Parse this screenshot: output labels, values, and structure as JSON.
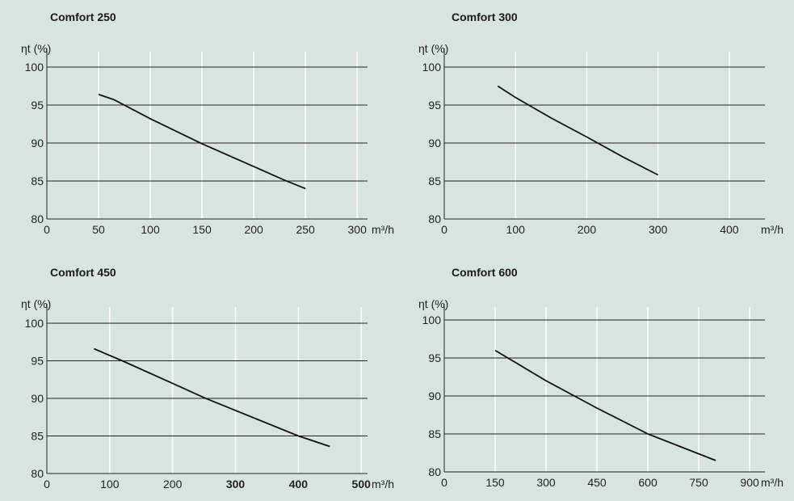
{
  "chart_data": [
    {
      "type": "line",
      "title": "Comfort 250",
      "ylabel": "ηt (%)",
      "xlabel": "m³/h",
      "ylim": [
        80,
        100
      ],
      "xlim": [
        0,
        310
      ],
      "xticks": [
        0,
        50,
        100,
        150,
        200,
        250,
        300
      ],
      "xtick_labels": [
        "0",
        "50",
        "100",
        "150",
        "200",
        "250",
        "300"
      ],
      "xtick_bold": [
        false,
        false,
        false,
        false,
        false,
        false,
        false
      ],
      "yticks": [
        80,
        85,
        90,
        95,
        100
      ],
      "grid": "vertical-white horizontal-black",
      "series": [
        {
          "x": [
            50,
            65,
            100,
            150,
            200,
            230,
            250
          ],
          "y": [
            96.4,
            95.7,
            93.2,
            89.9,
            86.9,
            85.1,
            84.0
          ]
        }
      ]
    },
    {
      "type": "line",
      "title": "Comfort 300",
      "ylabel": "ηt (%)",
      "xlabel": "m³/h",
      "ylim": [
        80,
        100
      ],
      "xlim": [
        0,
        450
      ],
      "xticks": [
        0,
        100,
        200,
        300,
        400
      ],
      "xtick_labels": [
        "0",
        "100",
        "200",
        "300",
        "400"
      ],
      "xtick_bold": [
        false,
        false,
        false,
        false,
        false
      ],
      "yticks": [
        80,
        85,
        90,
        95,
        100
      ],
      "grid": "vertical-white horizontal-black",
      "series": [
        {
          "x": [
            75,
            100,
            150,
            200,
            250,
            300
          ],
          "y": [
            97.5,
            96.0,
            93.3,
            90.8,
            88.2,
            85.8
          ]
        }
      ]
    },
    {
      "type": "line",
      "title": "Comfort 450",
      "ylabel": "ηt (%)",
      "xlabel": "m³/h",
      "ylim": [
        80,
        100
      ],
      "xlim": [
        0,
        510
      ],
      "xticks": [
        0,
        100,
        200,
        300,
        400,
        500
      ],
      "xtick_labels": [
        "0",
        "100",
        "200",
        "300",
        "400",
        "500"
      ],
      "xtick_bold": [
        false,
        false,
        false,
        true,
        true,
        true
      ],
      "yticks": [
        80,
        85,
        90,
        95,
        100
      ],
      "grid": "vertical-white horizontal-black",
      "series": [
        {
          "x": [
            75,
            120,
            200,
            250,
            300,
            400,
            450
          ],
          "y": [
            96.6,
            95.0,
            92.0,
            90.1,
            88.4,
            85.0,
            83.6
          ]
        }
      ]
    },
    {
      "type": "line",
      "title": "Comfort 600",
      "ylabel": "ηt (%)",
      "xlabel": "m³/h",
      "ylim": [
        80,
        100
      ],
      "xlim": [
        0,
        945
      ],
      "xticks": [
        0,
        150,
        300,
        450,
        600,
        750,
        900
      ],
      "xtick_labels": [
        "0",
        "150",
        "300",
        "450",
        "600",
        "750",
        "900"
      ],
      "xtick_bold": [
        false,
        false,
        false,
        false,
        false,
        false,
        false
      ],
      "yticks": [
        80,
        85,
        90,
        95,
        100
      ],
      "grid": "vertical-white horizontal-black",
      "series": [
        {
          "x": [
            150,
            300,
            450,
            600,
            800
          ],
          "y": [
            96.0,
            92.0,
            88.4,
            85.0,
            81.5
          ]
        }
      ]
    }
  ],
  "colors": {
    "background": "#d9e3e2",
    "line": "#111111",
    "vgrid": "#ffffff",
    "hgrid": "#222222"
  }
}
